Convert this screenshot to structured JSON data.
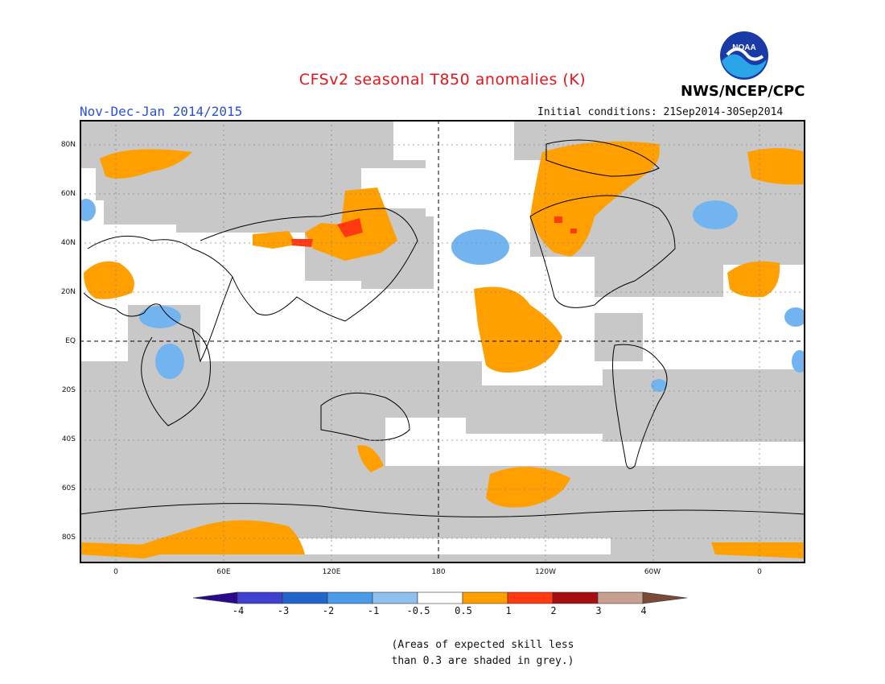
{
  "header": {
    "title": "CFSv2 seasonal T850 anomalies (K)",
    "period": "Nov-Dec-Jan 2014/2015",
    "initial_conditions": "Initial conditions: 21Sep2014-30Sep2014",
    "agency": "NWS/NCEP/CPC",
    "logo_text": "NOAA"
  },
  "axes": {
    "y_ticks": [
      "80N",
      "60N",
      "40N",
      "20N",
      "EQ",
      "20S",
      "40S",
      "60S",
      "80S"
    ],
    "x_ticks": [
      "0",
      "60E",
      "120E",
      "180",
      "120W",
      "60W",
      "0"
    ]
  },
  "colorbar": {
    "labels": [
      "-4",
      "-3",
      "-2",
      "-1",
      "-0.5",
      "0.5",
      "1",
      "2",
      "3",
      "4"
    ],
    "colors": [
      "#2a0a8a",
      "#4040d0",
      "#2266cc",
      "#4a9be8",
      "#8ec0f0",
      "#ffffff",
      "#ff9f00",
      "#ff3a12",
      "#a50f0f",
      "#c8a090",
      "#7a4a38"
    ]
  },
  "legend_note": {
    "line1": "(Areas of expected skill less",
    "line2": "than 0.3 are shaded in grey.)"
  },
  "map_colors": {
    "low_skill_grey": "#c8c8c8",
    "warm_anomaly": "#ff9f00",
    "strong_warm": "#ff3a12",
    "cool_anomaly": "#72b4f0"
  }
}
